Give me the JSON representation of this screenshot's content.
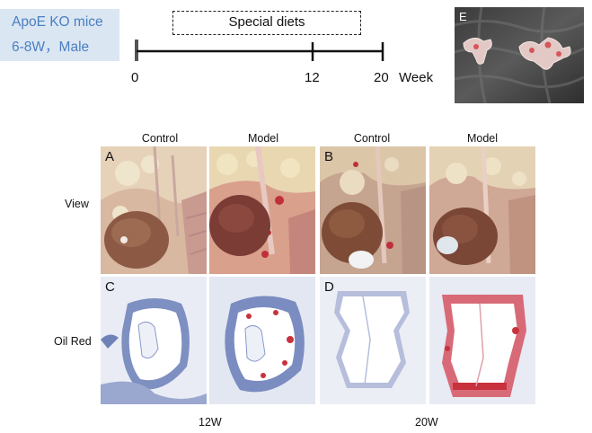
{
  "header": {
    "mice_line1": "ApoE KO mice",
    "mice_line2": "6-8W，Male",
    "diet_label": "Special diets",
    "ticks": [
      "0",
      "12",
      "20"
    ],
    "unit": "Week"
  },
  "columns": [
    "Control",
    "Model",
    "Control",
    "Model"
  ],
  "rows": [
    "View",
    "Oil Red"
  ],
  "panel_labels": {
    "A": "A",
    "B": "B",
    "C": "C",
    "D": "D",
    "E": "E"
  },
  "timepoints": [
    "12W",
    "20W"
  ],
  "colors": {
    "mice_box": "#dbe6f3",
    "mice_text": "#4a7fc1",
    "stain_red": "#c8323c",
    "stain_blue": "#6f82b8"
  }
}
